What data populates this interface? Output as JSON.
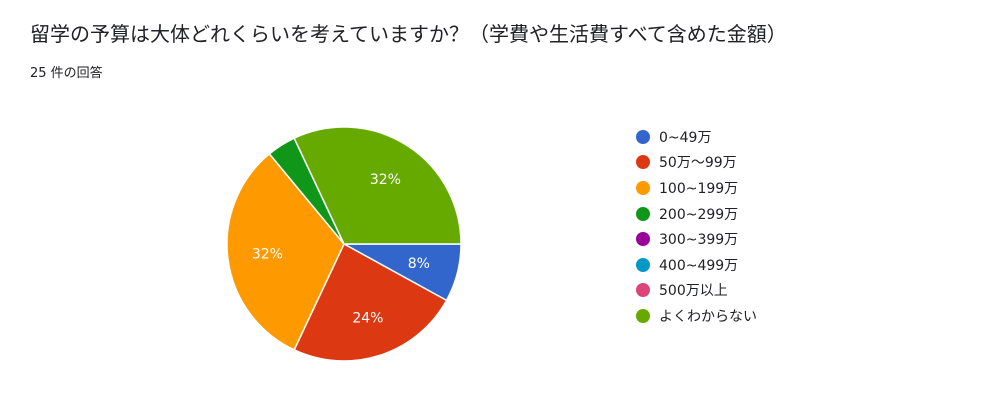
{
  "header": {
    "title": "留学の予算は大体どれくらいを考えていますか？（学費や生活費すべて含めた金額）",
    "response_count": "25 件の回答"
  },
  "chart_data": {
    "type": "pie",
    "categories": [
      "0~49万",
      "50万〜99万",
      "100~199万",
      "200~299万",
      "300~399万",
      "400~499万",
      "500万以上",
      "よくわからない"
    ],
    "values": [
      2,
      6,
      8,
      1,
      0,
      0,
      0,
      8
    ],
    "slice_labels": [
      "8%",
      "24%",
      "32%",
      "",
      "",
      "",
      "",
      "32%"
    ],
    "colors": [
      "#3366cc",
      "#dc3912",
      "#ff9900",
      "#109618",
      "#990099",
      "#0099c6",
      "#dd4477",
      "#66aa00"
    ],
    "legend_position": "right"
  }
}
